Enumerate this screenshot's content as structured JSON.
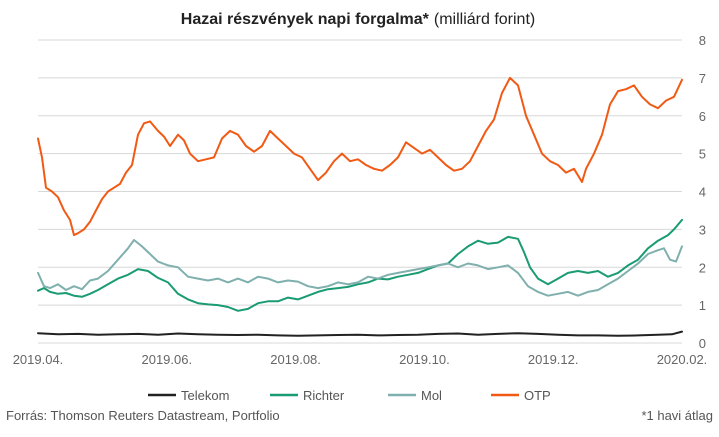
{
  "chart_data": {
    "type": "line",
    "title": "Hazai részvények napi forgalma*",
    "subtitle": "(milliárd forint)",
    "xlabel": "",
    "ylabel": "",
    "x_ticks": [
      "2019.04.",
      "2019.06.",
      "2019.08.",
      "2019.10.",
      "2019.12.",
      "2020.02."
    ],
    "ylim": [
      0,
      8
    ],
    "y_ticks": [
      "0",
      "1",
      "2",
      "3",
      "4",
      "5",
      "6",
      "7",
      "8"
    ],
    "grid": true,
    "legend_position": "bottom",
    "series": [
      {
        "name": "Telekom",
        "color": "#222222",
        "points": [
          [
            0,
            0.26
          ],
          [
            10,
            0.23
          ],
          [
            20,
            0.24
          ],
          [
            30,
            0.22
          ],
          [
            40,
            0.23
          ],
          [
            50,
            0.24
          ],
          [
            60,
            0.22
          ],
          [
            70,
            0.25
          ],
          [
            80,
            0.23
          ],
          [
            90,
            0.22
          ],
          [
            100,
            0.21
          ],
          [
            110,
            0.22
          ],
          [
            120,
            0.2
          ],
          [
            130,
            0.19
          ],
          [
            140,
            0.2
          ],
          [
            150,
            0.21
          ],
          [
            160,
            0.22
          ],
          [
            170,
            0.2
          ],
          [
            180,
            0.21
          ],
          [
            190,
            0.22
          ],
          [
            200,
            0.24
          ],
          [
            210,
            0.25
          ],
          [
            220,
            0.22
          ],
          [
            230,
            0.24
          ],
          [
            240,
            0.26
          ],
          [
            250,
            0.24
          ],
          [
            260,
            0.22
          ],
          [
            270,
            0.2
          ],
          [
            280,
            0.2
          ],
          [
            290,
            0.19
          ],
          [
            300,
            0.2
          ],
          [
            310,
            0.22
          ],
          [
            317,
            0.23
          ],
          [
            322,
            0.3
          ]
        ]
      },
      {
        "name": "Richter",
        "color": "#1a9b73",
        "points": [
          [
            0,
            1.38
          ],
          [
            3,
            1.45
          ],
          [
            6,
            1.35
          ],
          [
            10,
            1.3
          ],
          [
            14,
            1.32
          ],
          [
            18,
            1.25
          ],
          [
            22,
            1.22
          ],
          [
            26,
            1.3
          ],
          [
            30,
            1.4
          ],
          [
            35,
            1.55
          ],
          [
            40,
            1.7
          ],
          [
            45,
            1.8
          ],
          [
            50,
            1.95
          ],
          [
            55,
            1.9
          ],
          [
            60,
            1.72
          ],
          [
            65,
            1.6
          ],
          [
            70,
            1.3
          ],
          [
            75,
            1.15
          ],
          [
            80,
            1.05
          ],
          [
            85,
            1.02
          ],
          [
            90,
            1.0
          ],
          [
            95,
            0.95
          ],
          [
            100,
            0.85
          ],
          [
            105,
            0.9
          ],
          [
            110,
            1.05
          ],
          [
            115,
            1.1
          ],
          [
            120,
            1.1
          ],
          [
            125,
            1.2
          ],
          [
            130,
            1.15
          ],
          [
            135,
            1.25
          ],
          [
            140,
            1.35
          ],
          [
            145,
            1.42
          ],
          [
            150,
            1.45
          ],
          [
            155,
            1.48
          ],
          [
            160,
            1.55
          ],
          [
            165,
            1.6
          ],
          [
            170,
            1.7
          ],
          [
            175,
            1.68
          ],
          [
            180,
            1.75
          ],
          [
            185,
            1.8
          ],
          [
            190,
            1.85
          ],
          [
            195,
            1.95
          ],
          [
            200,
            2.05
          ],
          [
            205,
            2.1
          ],
          [
            210,
            2.35
          ],
          [
            215,
            2.55
          ],
          [
            220,
            2.7
          ],
          [
            225,
            2.62
          ],
          [
            230,
            2.65
          ],
          [
            235,
            2.8
          ],
          [
            240,
            2.75
          ],
          [
            243,
            2.4
          ],
          [
            246,
            2.0
          ],
          [
            250,
            1.7
          ],
          [
            255,
            1.55
          ],
          [
            260,
            1.7
          ],
          [
            265,
            1.85
          ],
          [
            270,
            1.9
          ],
          [
            275,
            1.85
          ],
          [
            280,
            1.9
          ],
          [
            285,
            1.75
          ],
          [
            290,
            1.85
          ],
          [
            295,
            2.05
          ],
          [
            300,
            2.2
          ],
          [
            305,
            2.5
          ],
          [
            310,
            2.7
          ],
          [
            315,
            2.85
          ],
          [
            318,
            3.0
          ],
          [
            322,
            3.25
          ]
        ]
      },
      {
        "name": "Mol",
        "color": "#7fb0ae",
        "points": [
          [
            0,
            1.85
          ],
          [
            3,
            1.5
          ],
          [
            6,
            1.45
          ],
          [
            10,
            1.55
          ],
          [
            14,
            1.4
          ],
          [
            18,
            1.5
          ],
          [
            22,
            1.42
          ],
          [
            26,
            1.65
          ],
          [
            30,
            1.7
          ],
          [
            35,
            1.9
          ],
          [
            40,
            2.2
          ],
          [
            45,
            2.5
          ],
          [
            48,
            2.72
          ],
          [
            52,
            2.55
          ],
          [
            56,
            2.35
          ],
          [
            60,
            2.15
          ],
          [
            65,
            2.05
          ],
          [
            70,
            2.0
          ],
          [
            75,
            1.75
          ],
          [
            80,
            1.7
          ],
          [
            85,
            1.65
          ],
          [
            90,
            1.7
          ],
          [
            95,
            1.6
          ],
          [
            100,
            1.7
          ],
          [
            105,
            1.6
          ],
          [
            110,
            1.75
          ],
          [
            115,
            1.7
          ],
          [
            120,
            1.6
          ],
          [
            125,
            1.65
          ],
          [
            130,
            1.62
          ],
          [
            135,
            1.5
          ],
          [
            140,
            1.45
          ],
          [
            145,
            1.5
          ],
          [
            150,
            1.6
          ],
          [
            155,
            1.55
          ],
          [
            160,
            1.6
          ],
          [
            165,
            1.75
          ],
          [
            170,
            1.7
          ],
          [
            175,
            1.8
          ],
          [
            180,
            1.85
          ],
          [
            185,
            1.9
          ],
          [
            190,
            1.95
          ],
          [
            195,
            2.0
          ],
          [
            200,
            2.05
          ],
          [
            205,
            2.1
          ],
          [
            210,
            2.0
          ],
          [
            215,
            2.1
          ],
          [
            220,
            2.05
          ],
          [
            225,
            1.95
          ],
          [
            230,
            2.0
          ],
          [
            235,
            2.05
          ],
          [
            240,
            1.85
          ],
          [
            245,
            1.5
          ],
          [
            250,
            1.35
          ],
          [
            255,
            1.25
          ],
          [
            260,
            1.3
          ],
          [
            265,
            1.35
          ],
          [
            270,
            1.25
          ],
          [
            275,
            1.35
          ],
          [
            280,
            1.4
          ],
          [
            285,
            1.55
          ],
          [
            290,
            1.7
          ],
          [
            295,
            1.9
          ],
          [
            300,
            2.1
          ],
          [
            305,
            2.35
          ],
          [
            310,
            2.45
          ],
          [
            313,
            2.5
          ],
          [
            316,
            2.2
          ],
          [
            319,
            2.15
          ],
          [
            322,
            2.55
          ]
        ]
      },
      {
        "name": "OTP",
        "color": "#f05a14",
        "points": [
          [
            0,
            5.4
          ],
          [
            2,
            4.9
          ],
          [
            4,
            4.1
          ],
          [
            7,
            4.0
          ],
          [
            10,
            3.85
          ],
          [
            13,
            3.5
          ],
          [
            16,
            3.25
          ],
          [
            18,
            2.85
          ],
          [
            20,
            2.9
          ],
          [
            23,
            3.0
          ],
          [
            26,
            3.2
          ],
          [
            29,
            3.5
          ],
          [
            32,
            3.8
          ],
          [
            35,
            4.0
          ],
          [
            38,
            4.1
          ],
          [
            41,
            4.2
          ],
          [
            44,
            4.5
          ],
          [
            47,
            4.7
          ],
          [
            50,
            5.5
          ],
          [
            53,
            5.8
          ],
          [
            56,
            5.85
          ],
          [
            60,
            5.6
          ],
          [
            63,
            5.45
          ],
          [
            66,
            5.2
          ],
          [
            70,
            5.5
          ],
          [
            73,
            5.35
          ],
          [
            76,
            5.0
          ],
          [
            80,
            4.8
          ],
          [
            84,
            4.85
          ],
          [
            88,
            4.9
          ],
          [
            92,
            5.4
          ],
          [
            96,
            5.6
          ],
          [
            100,
            5.5
          ],
          [
            104,
            5.2
          ],
          [
            108,
            5.05
          ],
          [
            112,
            5.2
          ],
          [
            116,
            5.6
          ],
          [
            120,
            5.4
          ],
          [
            124,
            5.2
          ],
          [
            128,
            5.0
          ],
          [
            132,
            4.9
          ],
          [
            136,
            4.6
          ],
          [
            140,
            4.3
          ],
          [
            144,
            4.5
          ],
          [
            148,
            4.8
          ],
          [
            152,
            5.0
          ],
          [
            156,
            4.8
          ],
          [
            160,
            4.85
          ],
          [
            164,
            4.7
          ],
          [
            168,
            4.6
          ],
          [
            172,
            4.55
          ],
          [
            176,
            4.7
          ],
          [
            180,
            4.9
          ],
          [
            184,
            5.3
          ],
          [
            188,
            5.15
          ],
          [
            192,
            5.0
          ],
          [
            196,
            5.1
          ],
          [
            200,
            4.9
          ],
          [
            204,
            4.7
          ],
          [
            208,
            4.55
          ],
          [
            212,
            4.6
          ],
          [
            216,
            4.8
          ],
          [
            220,
            5.2
          ],
          [
            224,
            5.6
          ],
          [
            228,
            5.9
          ],
          [
            232,
            6.6
          ],
          [
            236,
            7.0
          ],
          [
            240,
            6.8
          ],
          [
            244,
            6.0
          ],
          [
            248,
            5.5
          ],
          [
            252,
            5.0
          ],
          [
            256,
            4.8
          ],
          [
            260,
            4.7
          ],
          [
            264,
            4.5
          ],
          [
            268,
            4.6
          ],
          [
            272,
            4.25
          ],
          [
            274,
            4.6
          ],
          [
            278,
            5.0
          ],
          [
            282,
            5.5
          ],
          [
            286,
            6.3
          ],
          [
            290,
            6.65
          ],
          [
            294,
            6.7
          ],
          [
            298,
            6.8
          ],
          [
            302,
            6.5
          ],
          [
            306,
            6.3
          ],
          [
            310,
            6.2
          ],
          [
            314,
            6.4
          ],
          [
            318,
            6.5
          ],
          [
            322,
            6.95
          ]
        ]
      }
    ]
  },
  "legend": [
    {
      "name": "Telekom",
      "color": "#222222"
    },
    {
      "name": "Richter",
      "color": "#1a9b73"
    },
    {
      "name": "Mol",
      "color": "#7fb0ae"
    },
    {
      "name": "OTP",
      "color": "#f05a14"
    }
  ],
  "footer": {
    "source": "Forrás: Thomson Reuters Datastream, Portfolio",
    "note": "*1 havi átlag"
  }
}
